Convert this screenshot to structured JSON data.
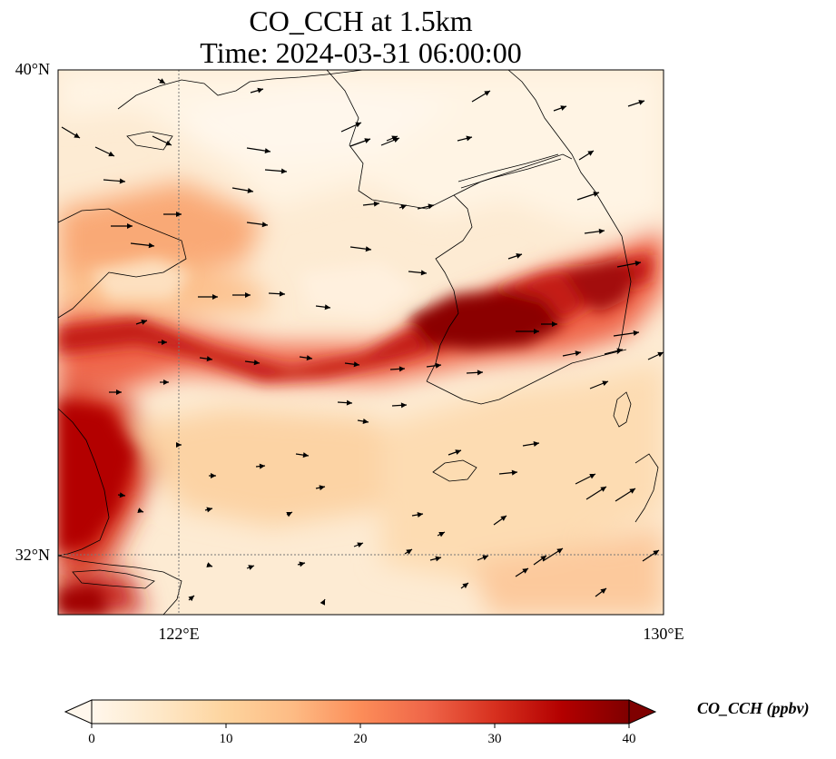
{
  "title": {
    "line1": "CO_CCH at 1.5km",
    "line2": "Time: 2024-03-31 06:00:00"
  },
  "map": {
    "variable": "CO_CCH",
    "height": "1.5km",
    "time": "2024-03-31 06:00:00",
    "lat_labels": [
      "40°N",
      "32°N"
    ],
    "lon_labels": [
      "122°E",
      "130°E"
    ],
    "gridlines": "dotted",
    "extent": {
      "lon_min": 120,
      "lon_max": 130,
      "lat_min": 31,
      "lat_max": 40
    },
    "colormap": "OrRd",
    "features": [
      "coastlines",
      "wind-vectors",
      "gridlines"
    ]
  },
  "colorbar": {
    "label": "CO_CCH (ppbv)",
    "ticks": [
      "0",
      "10",
      "20",
      "30",
      "40"
    ],
    "min": 0,
    "max": 40,
    "extend": "both",
    "colors": [
      "#fff7ec",
      "#fee8c8",
      "#fdd49e",
      "#fdbb84",
      "#fc8d59",
      "#ef6548",
      "#d7301f",
      "#b30000",
      "#7f0000"
    ]
  }
}
